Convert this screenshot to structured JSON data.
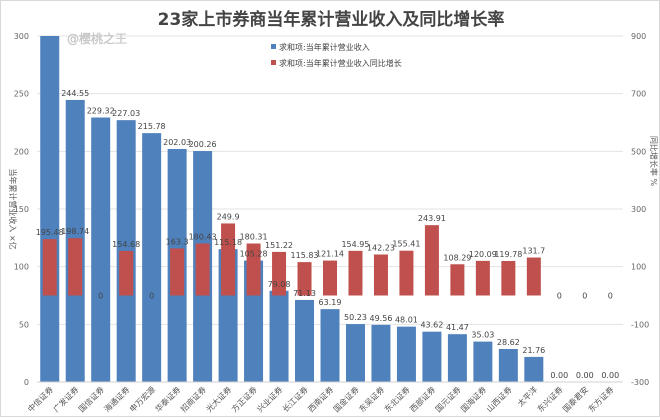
{
  "chart_data": {
    "type": "bar",
    "title": "23家上市券商当年累计营业收入及同比增长率",
    "watermark": "@樱桃之王",
    "ylabel": "当年累计营业收入 ×亿",
    "y2label": "同比增长率 %",
    "ylim": [
      0,
      300
    ],
    "y2lim": [
      -300,
      900
    ],
    "yticks": [
      0,
      50,
      100,
      150,
      200,
      250,
      300
    ],
    "y2ticks": [
      -300,
      -100,
      100,
      300,
      500,
      700,
      900
    ],
    "grid": true,
    "legend_position": "top-right",
    "categories": [
      "中信证券",
      "广发证券",
      "国信证券",
      "海通证券",
      "申万宏源",
      "华泰证券",
      "招商证券",
      "光大证券",
      "方正证券",
      "兴业证券",
      "长江证券",
      "西南证券",
      "国金证券",
      "东吴证券",
      "东北证券",
      "西部证券",
      "国元证券",
      "国海证券",
      "山西证券",
      "太平洋",
      "东兴证券",
      "国泰君安",
      "东方证券"
    ],
    "series": [
      {
        "name": "求和项:当年累计营业收入",
        "axis": "left",
        "color": "#4f81bd",
        "values": [
          300,
          244.55,
          229.32,
          227.03,
          215.78,
          202.03,
          200.26,
          115.18,
          105.28,
          79.08,
          71.13,
          63.19,
          50.23,
          49.56,
          48.01,
          43.62,
          41.47,
          35.03,
          28.62,
          21.76,
          0.0,
          0.0,
          0.0
        ],
        "labels": [
          "",
          "244.55",
          "229.32",
          "227.03",
          "215.78",
          "202.03",
          "200.26",
          "115.18",
          "105.28",
          "79.08",
          "71.13",
          "63.19",
          "50.23",
          "49.56",
          "48.01",
          "43.62",
          "41.47",
          "35.03",
          "28.62",
          "21.76",
          "0.00",
          "0.00",
          "0.00"
        ]
      },
      {
        "name": "求和项:当年累计营业收入同比增长",
        "axis": "right",
        "color": "#c0504d",
        "values": [
          195.48,
          198.74,
          0,
          154.68,
          0,
          163.3,
          180.43,
          249.9,
          180.31,
          151.22,
          115.83,
          121.14,
          154.95,
          142.23,
          155.41,
          243.91,
          108.29,
          120.09,
          119.78,
          131.7,
          0,
          0,
          0
        ],
        "labels": [
          "195.48",
          "198.74",
          "0",
          "154.68",
          "0",
          "163.3",
          "180.43",
          "249.9",
          "180.31",
          "151.22",
          "115.83",
          "121.14",
          "154.95",
          "142.23",
          "155.41",
          "243.91",
          "108.29",
          "120.09",
          "119.78",
          "131.7",
          "0",
          "0",
          "0"
        ]
      }
    ]
  }
}
